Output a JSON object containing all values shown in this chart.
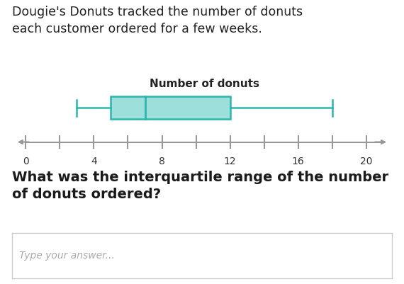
{
  "title_text": "Dougie's Donuts tracked the number of donuts\neach customer ordered for a few weeks.",
  "boxplot_title": "Number of donuts",
  "question_text": "What was the interquartile range of the number\nof donuts ordered?",
  "answer_placeholder": "Type your answer...",
  "axis_min": 0,
  "axis_max": 20,
  "tick_labels": [
    0,
    4,
    8,
    12,
    16,
    20
  ],
  "whisker_low": 3,
  "q1": 5,
  "median": 7,
  "q3": 12,
  "whisker_high": 18,
  "box_facecolor": "#9de0db",
  "box_edgecolor": "#2ab5ad",
  "whisker_color": "#2ab5ad",
  "line_color": "#999999",
  "background_color": "#ffffff",
  "title_fontsize": 12.5,
  "boxplot_title_fontsize": 11,
  "question_fontsize": 14,
  "tick_fontsize": 10,
  "placeholder_fontsize": 10,
  "placeholder_color": "#aaaaaa"
}
